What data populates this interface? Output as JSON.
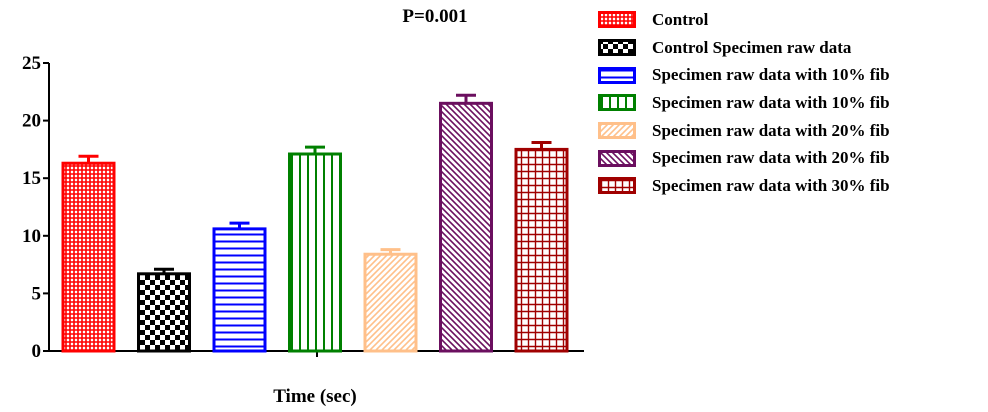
{
  "chart_data": {
    "type": "bar",
    "title": "P=0.001",
    "xlabel": "Time (sec)",
    "ylabel": "",
    "ylim": [
      0,
      25
    ],
    "yticks": [
      "0",
      "5",
      "10",
      "15",
      "20",
      "25"
    ],
    "grid": false,
    "legend_position": "right",
    "series": [
      {
        "name": "Control",
        "value": 16.3,
        "error": 0.6,
        "color": "#ff0000",
        "pattern": "fine-crosshatch"
      },
      {
        "name": "Control Specimen raw data",
        "value": 6.7,
        "error": 0.4,
        "color": "#000000",
        "pattern": "checkerboard"
      },
      {
        "name": "Specimen raw data with 10% fib",
        "value": 10.6,
        "error": 0.5,
        "color": "#0000ff",
        "pattern": "horizontal-lines"
      },
      {
        "name": "Specimen raw data with 10% fib",
        "value": 17.1,
        "error": 0.6,
        "color": "#008000",
        "pattern": "vertical-lines"
      },
      {
        "name": "Specimen raw data with 20% fib",
        "value": 8.4,
        "error": 0.4,
        "color": "#ffc08a",
        "pattern": "forward-diagonal"
      },
      {
        "name": "Specimen raw data with 20% fib",
        "value": 21.5,
        "error": 0.7,
        "color": "#6b0f5f",
        "pattern": "back-diagonal"
      },
      {
        "name": "Specimen raw data with 30% fib",
        "value": 17.5,
        "error": 0.6,
        "color": "#a00000",
        "pattern": "grid"
      }
    ]
  }
}
